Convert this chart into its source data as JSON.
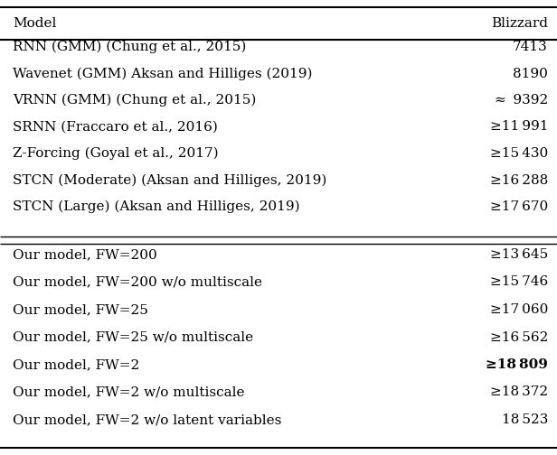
{
  "title_col1": "Model",
  "title_col2": "Blizzard",
  "section1": [
    {
      "model": "RNN (GMM) (Chung et al., 2015)",
      "value": "7413",
      "prefix": ""
    },
    {
      "model": "Wavenet (GMM) Aksan and Hilliges (2019)",
      "value": "8190",
      "prefix": ""
    },
    {
      "model": "VRNN (GMM) (Chung et al., 2015)",
      "value": "9392",
      "prefix": "≈ "
    },
    {
      "model": "SRNN (Fraccaro et al., 2016)",
      "value": "11 991",
      "prefix": "≥"
    },
    {
      "model": "Z-Forcing (Goyal et al., 2017)",
      "value": "15 430",
      "prefix": "≥"
    },
    {
      "model": "STCN (Moderate) (Aksan and Hilliges, 2019)",
      "value": "16 288",
      "prefix": "≥"
    },
    {
      "model": "STCN (Large) (Aksan and Hilliges, 2019)",
      "value": "17 670",
      "prefix": "≥"
    }
  ],
  "section2": [
    {
      "model": "Our model, FW=200",
      "value": "13 645",
      "prefix": "≥",
      "bold": false
    },
    {
      "model": "Our model, FW=200 w/o multiscale",
      "value": "15 746",
      "prefix": "≥",
      "bold": false
    },
    {
      "model": "Our model, FW=25",
      "value": "17 060",
      "prefix": "≥",
      "bold": false
    },
    {
      "model": "Our model, FW=25 w/o multiscale",
      "value": "16 562",
      "prefix": "≥",
      "bold": false
    },
    {
      "model": "Our model, FW=2",
      "value": "18 809",
      "prefix": "≥",
      "bold": true
    },
    {
      "model": "Our model, FW=2 w/o multiscale",
      "value": "18 372",
      "prefix": "≥",
      "bold": false
    },
    {
      "model": "Our model, FW=2 w/o latent variables",
      "value": "18 523",
      "prefix": "",
      "bold": false
    }
  ],
  "bg_color": "#ffffff",
  "text_color": "#000000",
  "fontsize": 11.0,
  "fig_width": 6.16,
  "fig_height": 5.04,
  "dpi": 100
}
